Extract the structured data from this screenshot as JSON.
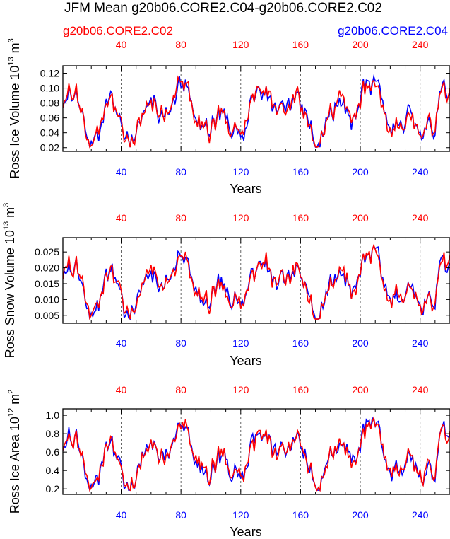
{
  "title": "JFM Mean g20b06.CORE2.C04-g20b06.CORE2.C02",
  "legend": {
    "left": {
      "label": "g20b06.CORE2.C02",
      "color": "#ff0000"
    },
    "right": {
      "label": "g20b06.CORE2.C04",
      "color": "#0000ff"
    }
  },
  "colors": {
    "case_c02": "#ff0000",
    "case_c04": "#0000ff",
    "frame": "#000000",
    "dashed": "#555555"
  },
  "chart_data": [
    {
      "type": "line",
      "title": "",
      "xlabel": "Years",
      "ylabel": "Ross Ice Volume 10",
      "ylabel_exp": "13",
      "ylabel_unit": " m",
      "ylabel_unit_exp": "3",
      "xlim": [
        1,
        260
      ],
      "ylim": [
        0.015,
        0.13
      ],
      "yticks": [
        "0.02",
        "0.04",
        "0.06",
        "0.08",
        "0.10",
        "0.12"
      ],
      "ytick_values": [
        0.02,
        0.04,
        0.06,
        0.08,
        0.1,
        0.12
      ],
      "top_ticks": [
        "40",
        "80",
        "120",
        "160",
        "200",
        "240"
      ],
      "bottom_ticks": [
        "40",
        "80",
        "120",
        "160",
        "200",
        "240"
      ],
      "tick_values": [
        40,
        80,
        120,
        160,
        200,
        240
      ],
      "vlines": [
        40,
        80,
        120,
        160,
        200,
        240
      ],
      "series": [
        {
          "name": "g20b06.CORE2.C04",
          "color": "#0000ff",
          "kind": "volume",
          "seed": 11
        },
        {
          "name": "g20b06.CORE2.C02",
          "color": "#ff0000",
          "kind": "volume",
          "seed": 23
        }
      ]
    },
    {
      "type": "line",
      "title": "",
      "xlabel": "Years",
      "ylabel": "Ross Snow Volume 10",
      "ylabel_exp": "13",
      "ylabel_unit": " m",
      "ylabel_unit_exp": "3",
      "xlim": [
        1,
        260
      ],
      "ylim": [
        0.0025,
        0.0295
      ],
      "yticks": [
        "0.005",
        "0.010",
        "0.015",
        "0.020",
        "0.025"
      ],
      "ytick_values": [
        0.005,
        0.01,
        0.015,
        0.02,
        0.025
      ],
      "top_ticks": [
        "40",
        "80",
        "120",
        "160",
        "200",
        "240"
      ],
      "bottom_ticks": [
        "40",
        "80",
        "120",
        "160",
        "200",
        "240"
      ],
      "tick_values": [
        40,
        80,
        120,
        160,
        200,
        240
      ],
      "vlines": [
        40,
        80,
        120,
        160,
        200,
        240
      ],
      "series": [
        {
          "name": "g20b06.CORE2.C04",
          "color": "#0000ff",
          "kind": "snow",
          "seed": 37
        },
        {
          "name": "g20b06.CORE2.C02",
          "color": "#ff0000",
          "kind": "snow",
          "seed": 41
        }
      ]
    },
    {
      "type": "line",
      "title": "",
      "xlabel": "Years",
      "ylabel": "Ross Ice Area 10",
      "ylabel_exp": "12",
      "ylabel_unit": " m",
      "ylabel_unit_exp": "2",
      "xlim": [
        1,
        260
      ],
      "ylim": [
        0.14,
        1.07
      ],
      "yticks": [
        "0.2",
        "0.4",
        "0.6",
        "0.8",
        "1.0"
      ],
      "ytick_values": [
        0.2,
        0.4,
        0.6,
        0.8,
        1.0
      ],
      "top_ticks": [
        "40",
        "80",
        "120",
        "160",
        "200",
        "240"
      ],
      "bottom_ticks": [
        "40",
        "80",
        "120",
        "160",
        "200",
        "240"
      ],
      "tick_values": [
        40,
        80,
        120,
        160,
        200,
        240
      ],
      "vlines": [
        40,
        80,
        120,
        160,
        200,
        240
      ],
      "series": [
        {
          "name": "g20b06.CORE2.C04",
          "color": "#0000ff",
          "kind": "area",
          "seed": 53
        },
        {
          "name": "g20b06.CORE2.C02",
          "color": "#ff0000",
          "kind": "area",
          "seed": 67
        }
      ]
    }
  ]
}
